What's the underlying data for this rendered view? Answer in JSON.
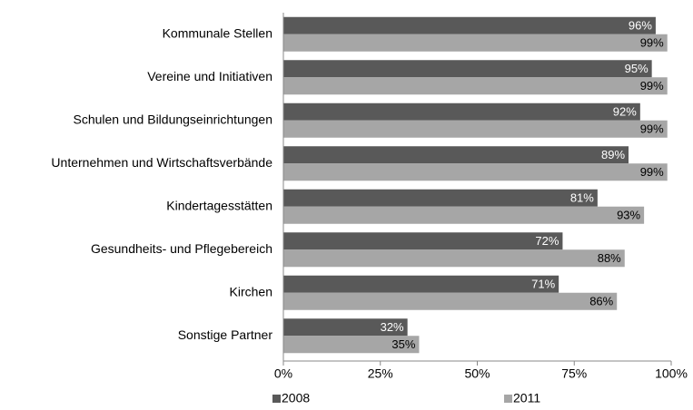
{
  "chart_data": {
    "type": "barh",
    "categories": [
      "Kommunale Stellen",
      "Vereine und Initiativen",
      "Schulen und Bildungseinrichtungen",
      "Unternehmen und Wirtschaftsverbände",
      "Kindertagesstätten",
      "Gesundheits- und Pflegebereich",
      "Kirchen",
      "Sonstige Partner"
    ],
    "series": [
      {
        "name": "2008",
        "color": "#595959",
        "values": [
          96,
          95,
          92,
          89,
          81,
          72,
          71,
          32
        ],
        "value_labels": [
          "96%",
          "95%",
          "92%",
          "89%",
          "81%",
          "72%",
          "71%",
          "32%"
        ]
      },
      {
        "name": "2011",
        "color": "#a6a6a6",
        "values": [
          99,
          99,
          99,
          99,
          93,
          88,
          86,
          35
        ],
        "value_labels": [
          "99%",
          "99%",
          "99%",
          "99%",
          "93%",
          "88%",
          "86%",
          "35%"
        ]
      }
    ],
    "xlim": [
      0,
      100
    ],
    "xticks": [
      {
        "value": 0,
        "label": "0%"
      },
      {
        "value": 25,
        "label": "25%"
      },
      {
        "value": 50,
        "label": "50%"
      },
      {
        "value": 75,
        "label": "75%"
      },
      {
        "value": 100,
        "label": "100%"
      }
    ],
    "legend": "bottom"
  }
}
